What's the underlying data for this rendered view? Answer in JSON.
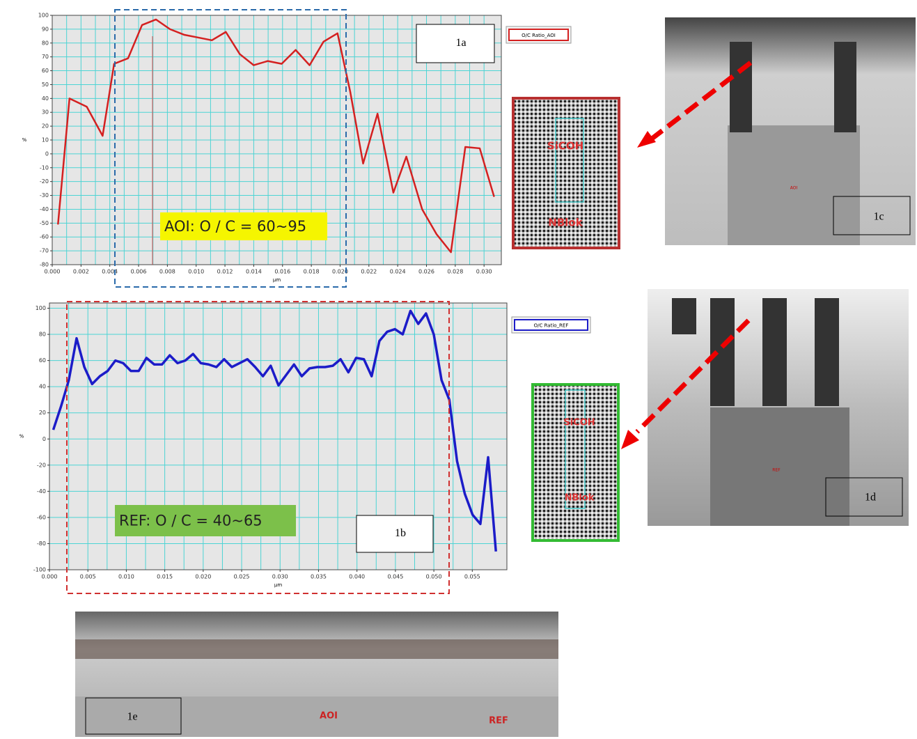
{
  "chart_data": [
    {
      "type": "line",
      "panel_label": "1a",
      "xlabel": "µm",
      "ylabel": "%",
      "annotation": "AOI: O / C = 60~95",
      "x": [
        0.0004,
        0.0012,
        0.0024,
        0.0035,
        0.0043,
        0.00527,
        0.00624,
        0.00721,
        0.00818,
        0.00915,
        0.01012,
        0.01109,
        0.01206,
        0.01303,
        0.014,
        0.01497,
        0.01594,
        0.01691,
        0.01788,
        0.01885,
        0.01982,
        0.0207,
        0.0216,
        0.0226,
        0.0237,
        0.0246,
        0.0257,
        0.0267,
        0.0277,
        0.0287,
        0.0297,
        0.0307
      ],
      "series": [
        {
          "name": "O/C Ratio_AOI",
          "color": "#d42020",
          "values": [
            -51,
            40,
            34,
            13,
            65,
            69,
            93,
            97,
            90,
            86,
            84,
            82,
            88,
            72,
            64,
            67,
            65,
            75,
            64,
            81,
            87,
            45,
            -7,
            29,
            -28,
            -2,
            -40,
            -58,
            -71,
            5,
            4,
            -31
          ]
        }
      ],
      "xlim": [
        0,
        0.0312
      ],
      "ylim": [
        -80,
        100
      ],
      "grid": true,
      "xticks": [
        {
          "value": 0,
          "label": "0.000"
        },
        {
          "value": 0.002,
          "label": "0.002"
        },
        {
          "value": 0.004,
          "label": "0.004"
        },
        {
          "value": 0.006,
          "label": "0.006"
        },
        {
          "value": 0.008,
          "label": "0.008"
        },
        {
          "value": 0.01,
          "label": "0.010"
        },
        {
          "value": 0.012,
          "label": "0.012"
        },
        {
          "value": 0.014,
          "label": "0.014"
        },
        {
          "value": 0.016,
          "label": "0.016"
        },
        {
          "value": 0.018,
          "label": "0.018"
        },
        {
          "value": 0.02,
          "label": "0.020"
        },
        {
          "value": 0.022,
          "label": "0.022"
        },
        {
          "value": 0.024,
          "label": "0.024"
        },
        {
          "value": 0.026,
          "label": "0.026"
        },
        {
          "value": 0.028,
          "label": "0.028"
        },
        {
          "value": 0.03,
          "label": "0.030"
        }
      ],
      "yticks": [
        -80,
        -70,
        -60,
        -50,
        -40,
        -30,
        -20,
        -10,
        0,
        10,
        20,
        30,
        40,
        50,
        60,
        70,
        80,
        90,
        100
      ]
    },
    {
      "type": "line",
      "panel_label": "1b",
      "xlabel": "µm",
      "ylabel": "%",
      "annotation": "REF: O / C = 40~65",
      "x": [
        0.0005,
        0.00151,
        0.00252,
        0.00353,
        0.00454,
        0.00555,
        0.00656,
        0.00757,
        0.00858,
        0.00959,
        0.0106,
        0.01161,
        0.01262,
        0.01363,
        0.01464,
        0.01565,
        0.01666,
        0.01767,
        0.01868,
        0.01969,
        0.0207,
        0.02171,
        0.02272,
        0.02373,
        0.02474,
        0.02575,
        0.02676,
        0.02777,
        0.02878,
        0.02979,
        0.0308,
        0.03181,
        0.03282,
        0.03383,
        0.03484,
        0.03585,
        0.03686,
        0.03787,
        0.03888,
        0.03989,
        0.0409,
        0.04191,
        0.04292,
        0.04393,
        0.04494,
        0.04595,
        0.04696,
        0.04797,
        0.04898,
        0.04999,
        0.051,
        0.05201,
        0.05302,
        0.05403,
        0.05504,
        0.05605,
        0.05706,
        0.05807
      ],
      "series": [
        {
          "name": "O/C Ratio_REF",
          "color": "#1c1cc8",
          "values": [
            7,
            25,
            45,
            77,
            55,
            42,
            48,
            52,
            60,
            58,
            52,
            52,
            62,
            57,
            57,
            64,
            58,
            60,
            65,
            58,
            57,
            55,
            61,
            55,
            58,
            61,
            55,
            48,
            56,
            41,
            49,
            57,
            48,
            54,
            55,
            55,
            56,
            61,
            51,
            62,
            61,
            48,
            75,
            82,
            84,
            80,
            98,
            88,
            96,
            80,
            45,
            30,
            -17,
            -42,
            -58,
            -65,
            -14,
            -86
          ]
        }
      ],
      "xlim": [
        0,
        0.0595
      ],
      "ylim": [
        -100,
        104
      ],
      "grid": true,
      "xticks": [
        {
          "value": 0,
          "label": "0.000"
        },
        {
          "value": 0.005,
          "label": "0.005"
        },
        {
          "value": 0.01,
          "label": "0.010"
        },
        {
          "value": 0.015,
          "label": "0.015"
        },
        {
          "value": 0.02,
          "label": "0.020"
        },
        {
          "value": 0.025,
          "label": "0.025"
        },
        {
          "value": 0.03,
          "label": "0.030"
        },
        {
          "value": 0.035,
          "label": "0.035"
        },
        {
          "value": 0.04,
          "label": "0.040"
        },
        {
          "value": 0.045,
          "label": "0.045"
        },
        {
          "value": 0.05,
          "label": "0.050"
        },
        {
          "value": 0.055,
          "label": "0.055"
        }
      ],
      "yticks": [
        -100,
        -80,
        -60,
        -40,
        -20,
        0,
        20,
        40,
        60,
        80,
        100
      ]
    }
  ],
  "inset_aoi": {
    "labels": [
      "SiCOH",
      "NBlok"
    ]
  },
  "image_1c": {
    "label": "1c",
    "marker": "AOI"
  },
  "inset_ref": {
    "labels": [
      "SiCOH",
      "NBlok"
    ]
  },
  "image_1d": {
    "label": "1d",
    "marker": "REF"
  },
  "image_1e": {
    "label": "1e",
    "markers": [
      "AOI",
      "REF"
    ]
  }
}
